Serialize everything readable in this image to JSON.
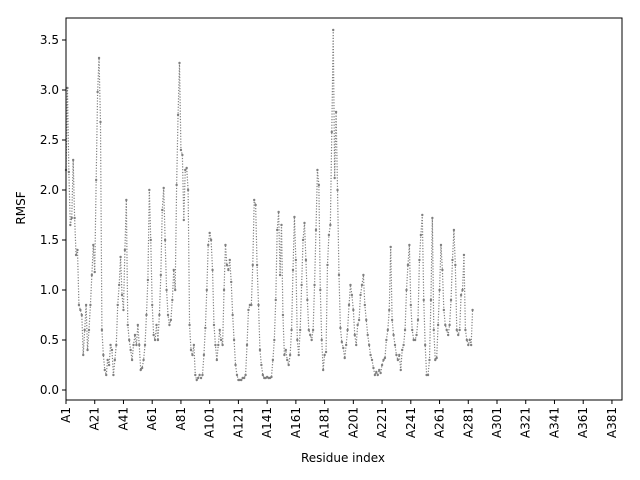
{
  "chart_data": {
    "type": "line",
    "title": "",
    "xlabel": "Residue index",
    "ylabel": "RMSF",
    "ylim": [
      -0.1,
      3.72
    ],
    "yticks": [
      0.0,
      0.5,
      1.0,
      1.5,
      2.0,
      2.5,
      3.0,
      3.5
    ],
    "ytick_labels": [
      "0.0",
      "0.5",
      "1.0",
      "1.5",
      "2.0",
      "2.5",
      "3.0",
      "3.5"
    ],
    "xticks": [
      1,
      21,
      41,
      61,
      81,
      101,
      121,
      141,
      161,
      181,
      201,
      221,
      241,
      261,
      281,
      301,
      321,
      341,
      361,
      381
    ],
    "xtick_labels": [
      "A1",
      "A21",
      "A41",
      "A61",
      "A81",
      "A101",
      "A121",
      "A141",
      "A161",
      "A181",
      "A201",
      "A221",
      "A241",
      "A261",
      "A281",
      "A301",
      "A321",
      "A341",
      "A361",
      "A381"
    ],
    "xlim": [
      1,
      388
    ],
    "grid": false,
    "legend": "none",
    "series": [
      {
        "color": "#7f7f7f",
        "line_style": "dotted",
        "marker": "point",
        "points": [
          [
            1,
            2.2
          ],
          [
            2,
            3.02
          ],
          [
            3,
            2.18
          ],
          [
            4,
            1.65
          ],
          [
            5,
            1.72
          ],
          [
            6,
            2.3
          ],
          [
            7,
            1.72
          ],
          [
            8,
            1.35
          ],
          [
            9,
            1.4
          ],
          [
            10,
            0.85
          ],
          [
            11,
            0.8
          ],
          [
            12,
            0.75
          ],
          [
            13,
            0.35
          ],
          [
            14,
            0.6
          ],
          [
            15,
            0.85
          ],
          [
            16,
            0.4
          ],
          [
            17,
            0.6
          ],
          [
            18,
            0.85
          ],
          [
            19,
            1.15
          ],
          [
            20,
            1.45
          ],
          [
            21,
            1.18
          ],
          [
            22,
            2.1
          ],
          [
            23,
            2.98
          ],
          [
            24,
            3.32
          ],
          [
            25,
            2.68
          ],
          [
            26,
            0.6
          ],
          [
            27,
            0.35
          ],
          [
            28,
            0.2
          ],
          [
            29,
            0.15
          ],
          [
            30,
            0.3
          ],
          [
            31,
            0.25
          ],
          [
            32,
            0.45
          ],
          [
            33,
            0.4
          ],
          [
            34,
            0.15
          ],
          [
            35,
            0.3
          ],
          [
            36,
            0.45
          ],
          [
            37,
            0.85
          ],
          [
            38,
            1.05
          ],
          [
            39,
            1.33
          ],
          [
            40,
            0.95
          ],
          [
            41,
            0.8
          ],
          [
            42,
            1.4
          ],
          [
            43,
            1.9
          ],
          [
            44,
            0.65
          ],
          [
            45,
            0.5
          ],
          [
            46,
            0.4
          ],
          [
            47,
            0.3
          ],
          [
            48,
            0.45
          ],
          [
            49,
            0.55
          ],
          [
            50,
            0.45
          ],
          [
            51,
            0.65
          ],
          [
            52,
            0.45
          ],
          [
            53,
            0.2
          ],
          [
            54,
            0.22
          ],
          [
            55,
            0.3
          ],
          [
            56,
            0.45
          ],
          [
            57,
            0.75
          ],
          [
            58,
            1.1
          ],
          [
            59,
            2.0
          ],
          [
            60,
            1.5
          ],
          [
            61,
            0.85
          ],
          [
            62,
            0.55
          ],
          [
            63,
            0.5
          ],
          [
            64,
            0.65
          ],
          [
            65,
            0.5
          ],
          [
            66,
            0.75
          ],
          [
            67,
            1.15
          ],
          [
            68,
            1.8
          ],
          [
            69,
            2.02
          ],
          [
            70,
            1.5
          ],
          [
            71,
            1.0
          ],
          [
            72,
            0.75
          ],
          [
            73,
            0.65
          ],
          [
            74,
            0.7
          ],
          [
            75,
            0.9
          ],
          [
            76,
            1.2
          ],
          [
            77,
            1.0
          ],
          [
            78,
            2.05
          ],
          [
            79,
            2.75
          ],
          [
            80,
            3.27
          ],
          [
            81,
            2.4
          ],
          [
            82,
            2.35
          ],
          [
            83,
            1.7
          ],
          [
            84,
            2.2
          ],
          [
            85,
            2.22
          ],
          [
            86,
            2.0
          ],
          [
            87,
            0.65
          ],
          [
            88,
            0.4
          ],
          [
            89,
            0.35
          ],
          [
            90,
            0.45
          ],
          [
            91,
            0.15
          ],
          [
            92,
            0.1
          ],
          [
            93,
            0.12
          ],
          [
            94,
            0.15
          ],
          [
            95,
            0.12
          ],
          [
            96,
            0.15
          ],
          [
            97,
            0.35
          ],
          [
            98,
            0.62
          ],
          [
            99,
            1.0
          ],
          [
            100,
            1.45
          ],
          [
            101,
            1.57
          ],
          [
            102,
            1.5
          ],
          [
            103,
            1.2
          ],
          [
            104,
            0.65
          ],
          [
            105,
            0.45
          ],
          [
            106,
            0.3
          ],
          [
            107,
            0.45
          ],
          [
            108,
            0.6
          ],
          [
            109,
            0.5
          ],
          [
            110,
            0.45
          ],
          [
            111,
            1.0
          ],
          [
            112,
            1.45
          ],
          [
            113,
            1.25
          ],
          [
            114,
            1.2
          ],
          [
            115,
            1.3
          ],
          [
            116,
            1.08
          ],
          [
            117,
            0.75
          ],
          [
            118,
            0.5
          ],
          [
            119,
            0.25
          ],
          [
            120,
            0.15
          ],
          [
            121,
            0.1
          ],
          [
            122,
            0.1
          ],
          [
            123,
            0.1
          ],
          [
            124,
            0.12
          ],
          [
            125,
            0.12
          ],
          [
            126,
            0.15
          ],
          [
            127,
            0.45
          ],
          [
            128,
            0.8
          ],
          [
            129,
            0.85
          ],
          [
            130,
            0.85
          ],
          [
            131,
            1.25
          ],
          [
            132,
            1.9
          ],
          [
            133,
            1.85
          ],
          [
            134,
            1.25
          ],
          [
            135,
            0.85
          ],
          [
            136,
            0.4
          ],
          [
            137,
            0.25
          ],
          [
            138,
            0.15
          ],
          [
            139,
            0.12
          ],
          [
            140,
            0.12
          ],
          [
            141,
            0.13
          ],
          [
            142,
            0.12
          ],
          [
            143,
            0.12
          ],
          [
            144,
            0.13
          ],
          [
            145,
            0.3
          ],
          [
            146,
            0.5
          ],
          [
            147,
            0.9
          ],
          [
            148,
            1.6
          ],
          [
            149,
            1.78
          ],
          [
            150,
            1.15
          ],
          [
            151,
            1.65
          ],
          [
            152,
            0.75
          ],
          [
            153,
            0.35
          ],
          [
            154,
            0.4
          ],
          [
            155,
            0.3
          ],
          [
            156,
            0.25
          ],
          [
            157,
            0.35
          ],
          [
            158,
            0.6
          ],
          [
            159,
            1.2
          ],
          [
            160,
            1.73
          ],
          [
            161,
            1.3
          ],
          [
            162,
            0.5
          ],
          [
            163,
            0.35
          ],
          [
            164,
            0.6
          ],
          [
            165,
            1.05
          ],
          [
            166,
            1.5
          ],
          [
            167,
            1.67
          ],
          [
            168,
            1.3
          ],
          [
            169,
            0.9
          ],
          [
            170,
            0.6
          ],
          [
            171,
            0.55
          ],
          [
            172,
            0.5
          ],
          [
            173,
            0.6
          ],
          [
            174,
            1.05
          ],
          [
            175,
            1.6
          ],
          [
            176,
            2.2
          ],
          [
            177,
            2.05
          ],
          [
            178,
            1.0
          ],
          [
            179,
            0.5
          ],
          [
            180,
            0.2
          ],
          [
            181,
            0.35
          ],
          [
            182,
            0.38
          ],
          [
            183,
            1.25
          ],
          [
            184,
            1.55
          ],
          [
            185,
            1.65
          ],
          [
            186,
            2.58
          ],
          [
            187,
            3.6
          ],
          [
            188,
            2.12
          ],
          [
            189,
            2.78
          ],
          [
            190,
            2.0
          ],
          [
            191,
            1.15
          ],
          [
            192,
            0.62
          ],
          [
            193,
            0.48
          ],
          [
            194,
            0.42
          ],
          [
            195,
            0.32
          ],
          [
            196,
            0.45
          ],
          [
            197,
            0.6
          ],
          [
            198,
            0.85
          ],
          [
            199,
            1.05
          ],
          [
            200,
            0.95
          ],
          [
            201,
            0.8
          ],
          [
            202,
            0.55
          ],
          [
            203,
            0.45
          ],
          [
            204,
            0.65
          ],
          [
            205,
            0.7
          ],
          [
            206,
            0.95
          ],
          [
            207,
            1.05
          ],
          [
            208,
            1.15
          ],
          [
            209,
            0.85
          ],
          [
            210,
            0.7
          ],
          [
            211,
            0.55
          ],
          [
            212,
            0.45
          ],
          [
            213,
            0.35
          ],
          [
            214,
            0.3
          ],
          [
            215,
            0.22
          ],
          [
            216,
            0.15
          ],
          [
            217,
            0.18
          ],
          [
            218,
            0.15
          ],
          [
            219,
            0.2
          ],
          [
            220,
            0.17
          ],
          [
            221,
            0.25
          ],
          [
            222,
            0.3
          ],
          [
            223,
            0.32
          ],
          [
            224,
            0.5
          ],
          [
            225,
            0.6
          ],
          [
            226,
            0.8
          ],
          [
            227,
            1.43
          ],
          [
            228,
            0.7
          ],
          [
            229,
            0.55
          ],
          [
            230,
            0.45
          ],
          [
            231,
            0.35
          ],
          [
            232,
            0.3
          ],
          [
            233,
            0.35
          ],
          [
            234,
            0.2
          ],
          [
            235,
            0.4
          ],
          [
            236,
            0.45
          ],
          [
            237,
            0.6
          ],
          [
            238,
            1.0
          ],
          [
            239,
            1.25
          ],
          [
            240,
            1.45
          ],
          [
            241,
            0.85
          ],
          [
            242,
            0.6
          ],
          [
            243,
            0.5
          ],
          [
            244,
            0.5
          ],
          [
            245,
            0.55
          ],
          [
            246,
            0.7
          ],
          [
            247,
            1.3
          ],
          [
            248,
            1.55
          ],
          [
            249,
            1.75
          ],
          [
            250,
            0.9
          ],
          [
            251,
            0.45
          ],
          [
            252,
            0.15
          ],
          [
            253,
            0.15
          ],
          [
            254,
            0.3
          ],
          [
            255,
            0.9
          ],
          [
            256,
            1.72
          ],
          [
            257,
            0.6
          ],
          [
            258,
            0.3
          ],
          [
            259,
            0.32
          ],
          [
            260,
            0.65
          ],
          [
            261,
            1.0
          ],
          [
            262,
            1.45
          ],
          [
            263,
            1.2
          ],
          [
            264,
            0.8
          ],
          [
            265,
            0.65
          ],
          [
            266,
            0.6
          ],
          [
            267,
            0.55
          ],
          [
            268,
            0.65
          ],
          [
            269,
            0.9
          ],
          [
            270,
            1.3
          ],
          [
            271,
            1.6
          ],
          [
            272,
            1.25
          ],
          [
            273,
            0.6
          ],
          [
            274,
            0.55
          ],
          [
            275,
            0.6
          ],
          [
            276,
            0.95
          ],
          [
            277,
            1.0
          ],
          [
            278,
            1.35
          ],
          [
            279,
            0.6
          ],
          [
            280,
            0.5
          ],
          [
            281,
            0.45
          ],
          [
            282,
            0.5
          ],
          [
            283,
            0.45
          ],
          [
            284,
            0.8
          ]
        ]
      }
    ]
  }
}
